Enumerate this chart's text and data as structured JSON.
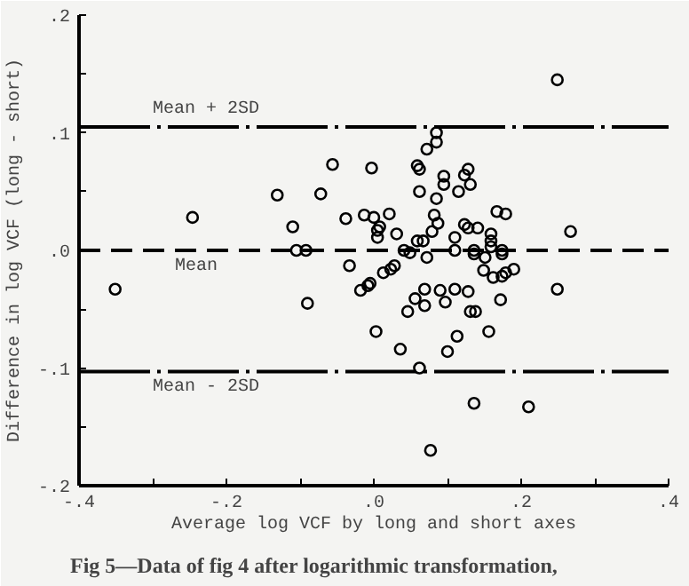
{
  "chart_data": {
    "type": "scatter",
    "xlabel": "Average log VCF by long and short axes",
    "ylabel": "Difference in log VCF (long - short)",
    "annotations": [
      "Fig 5—Data of fig 4 after logarithmic transformation,"
    ],
    "x": [
      -0.351,
      -0.246,
      -0.131,
      -0.11,
      -0.105,
      -0.092,
      -0.09,
      -0.072,
      -0.056,
      -0.038,
      -0.033,
      -0.018,
      -0.013,
      -0.008,
      -0.005,
      -0.003,
      0.0,
      0.003,
      0.005,
      0.005,
      0.008,
      0.013,
      0.021,
      0.023,
      0.028,
      0.031,
      0.041,
      0.046,
      0.049,
      0.036,
      0.056,
      0.059,
      0.059,
      0.062,
      0.062,
      0.067,
      0.069,
      0.069,
      0.072,
      0.072,
      0.077,
      0.079,
      0.082,
      0.085,
      0.085,
      0.085,
      0.087,
      0.09,
      0.095,
      0.095,
      0.097,
      0.1,
      0.11,
      0.11,
      0.11,
      0.113,
      0.115,
      0.123,
      0.123,
      0.128,
      0.128,
      0.128,
      0.131,
      0.131,
      0.136,
      0.136,
      0.138,
      0.141,
      0.149,
      0.151,
      0.156,
      0.159,
      0.159,
      0.159,
      0.162,
      0.167,
      0.172,
      0.174,
      0.174,
      0.174,
      0.179,
      0.179,
      0.19,
      0.21,
      0.249,
      0.249,
      0.267,
      0.136,
      0.062
    ],
    "values": [
      -0.033,
      0.028,
      0.047,
      0.02,
      0.0,
      0.0,
      -0.045,
      0.048,
      0.073,
      0.027,
      -0.013,
      -0.034,
      0.03,
      -0.03,
      -0.028,
      0.07,
      0.028,
      -0.069,
      0.017,
      0.011,
      0.02,
      -0.019,
      0.031,
      -0.016,
      -0.013,
      0.014,
      0.0,
      -0.052,
      -0.002,
      -0.084,
      -0.041,
      0.072,
      0.008,
      0.069,
      0.05,
      0.008,
      -0.033,
      -0.047,
      0.086,
      -0.006,
      -0.17,
      0.016,
      0.03,
      0.1,
      0.092,
      0.044,
      0.023,
      -0.034,
      0.063,
      0.056,
      -0.044,
      -0.086,
      0.011,
      0.0,
      -0.033,
      -0.073,
      0.05,
      0.064,
      0.022,
      0.069,
      0.019,
      -0.035,
      0.056,
      -0.052,
      0.0,
      -0.13,
      -0.052,
      0.019,
      -0.017,
      -0.006,
      -0.069,
      0.014,
      0.008,
      0.003,
      -0.023,
      0.033,
      -0.042,
      0.0,
      -0.022,
      -0.003,
      0.031,
      -0.019,
      -0.016,
      -0.133,
      0.145,
      -0.033,
      0.016,
      -0.003,
      -0.1
    ],
    "color": "#000000",
    "marker": "circle",
    "xlim": [
      -0.4,
      0.4
    ],
    "ylim": [
      -0.2,
      0.2
    ],
    "xticks": [
      {
        "value": -0.4,
        "label": "-.4"
      },
      {
        "value": -0.3,
        "label": null
      },
      {
        "value": -0.2,
        "label": "-.2"
      },
      {
        "value": -0.1,
        "label": null
      },
      {
        "value": 0.0,
        "label": ".0"
      },
      {
        "value": 0.1,
        "label": null
      },
      {
        "value": 0.2,
        "label": ".2"
      },
      {
        "value": 0.3,
        "label": null
      },
      {
        "value": 0.4,
        "label": ".4"
      }
    ],
    "yticks": [
      {
        "value": -0.2,
        "label": "-.2"
      },
      {
        "value": -0.15,
        "label": null
      },
      {
        "value": -0.1,
        "label": "-.1"
      },
      {
        "value": -0.05,
        "label": null
      },
      {
        "value": 0.0,
        "label": ".0"
      },
      {
        "value": 0.05,
        "label": null
      },
      {
        "value": 0.1,
        "label": ".1"
      },
      {
        "value": 0.15,
        "label": null
      },
      {
        "value": 0.2,
        "label": ".2"
      }
    ],
    "ref_lines": [
      {
        "axis": "y",
        "value": 0.105,
        "label": "Mean + 2SD",
        "line_style": "dashdot",
        "color": "#000000"
      },
      {
        "axis": "y",
        "value": 0.0,
        "label": "Mean",
        "line_style": "dashed",
        "color": "#000000"
      },
      {
        "axis": "y",
        "value": -0.103,
        "label": "Mean - 2SD",
        "line_style": "dashdot",
        "color": "#000000"
      }
    ],
    "grid": false
  }
}
